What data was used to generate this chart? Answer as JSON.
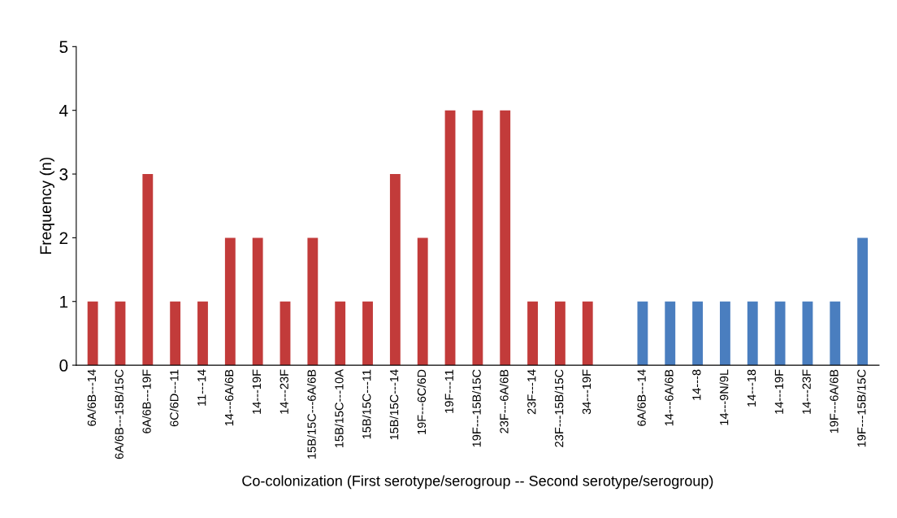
{
  "chart_data": {
    "type": "bar",
    "xlabel": "Co-colonization (First serotype/serogroup -- Second serotype/serogroup)",
    "ylabel": "Frequency (n)",
    "categories": [
      "6A/6B---14",
      "6A/6B---15B/15C",
      "6A/6B---19F",
      "6C/6D---11",
      "11---14",
      "14---6A/6B",
      "14---19F",
      "14---23F",
      "15B/15C---6A/6B",
      "15B/15C---10A",
      "15B/15C---11",
      "15B/15C---14",
      "19F---6C/6D",
      "19F---11",
      "19F---15B/15C",
      "23F---6A/6B",
      "23F---14",
      "23F---15B/15C",
      "34---19F",
      null,
      "6A/6B---14",
      "14---6A/6B",
      "14---8",
      "14---9N/9L",
      "14---18",
      "14---19F",
      "14---23F",
      "19F---6A/6B",
      "19F---15B/15C"
    ],
    "values": [
      1,
      1,
      3,
      1,
      1,
      2,
      2,
      1,
      2,
      1,
      1,
      3,
      2,
      4,
      4,
      4,
      1,
      1,
      1,
      null,
      1,
      1,
      1,
      1,
      1,
      1,
      1,
      1,
      2
    ],
    "colors": [
      "#c23b3a",
      "#c23b3a",
      "#c23b3a",
      "#c23b3a",
      "#c23b3a",
      "#c23b3a",
      "#c23b3a",
      "#c23b3a",
      "#c23b3a",
      "#c23b3a",
      "#c23b3a",
      "#c23b3a",
      "#c23b3a",
      "#c23b3a",
      "#c23b3a",
      "#c23b3a",
      "#c23b3a",
      "#c23b3a",
      "#c23b3a",
      "#ffffff",
      "#4a7ebf",
      "#4a7ebf",
      "#4a7ebf",
      "#4a7ebf",
      "#4a7ebf",
      "#4a7ebf",
      "#4a7ebf",
      "#4a7ebf",
      "#4a7ebf"
    ],
    "ylim": [
      0,
      5
    ],
    "yticks": [
      0,
      1,
      2,
      3,
      4,
      5
    ],
    "grid": false,
    "legend": false
  }
}
